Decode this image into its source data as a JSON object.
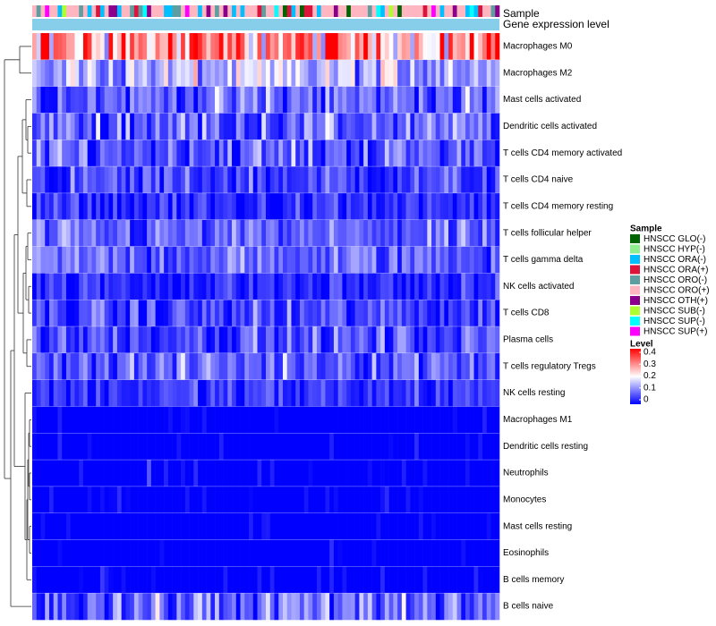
{
  "chart_data": {
    "type": "heatmap",
    "annotation_tracks": [
      "Sample",
      "Gene expression level"
    ],
    "row_labels": [
      "Macrophages M0",
      "Macrophages M2",
      "Mast cells activated",
      "Dendritic cells activated",
      "T cells CD4 memory activated",
      "T cells CD4 naive",
      "T cells CD4 memory resting",
      "T cells follicular helper",
      "T cells gamma delta",
      "NK cells activated",
      "T cells CD8",
      "Plasma cells",
      "T cells regulatory  Tregs",
      "NK cells resting",
      "Macrophages M1",
      "Dendritic cells resting",
      "Neutrophils",
      "Monocytes",
      "Mast cells resting",
      "Eosinophils",
      "B cells memory",
      "B cells naive"
    ],
    "row_mean_levels": [
      0.28,
      0.14,
      0.08,
      0.08,
      0.07,
      0.05,
      0.03,
      0.07,
      0.08,
      0.03,
      0.05,
      0.06,
      0.08,
      0.04,
      0.01,
      0.01,
      0.01,
      0.01,
      0.01,
      0.01,
      0.01,
      0.08
    ],
    "row_spread": [
      0.1,
      0.07,
      0.06,
      0.06,
      0.06,
      0.05,
      0.04,
      0.05,
      0.05,
      0.04,
      0.05,
      0.05,
      0.05,
      0.04,
      0.02,
      0.02,
      0.03,
      0.02,
      0.02,
      0.02,
      0.02,
      0.07
    ],
    "n_samples": 110,
    "color_scale": {
      "title": "Level",
      "ticks": [
        "0.4",
        "0.3",
        "0.2",
        "0.1",
        "0"
      ],
      "range": [
        0,
        0.4
      ],
      "colors": [
        "#0000ff",
        "#ffffff",
        "#ff0000"
      ]
    },
    "sample_legend": {
      "title": "Sample",
      "entries": [
        {
          "label": "HNSCC GLO(-)",
          "color": "#006400"
        },
        {
          "label": "HNSCC HYP(-)",
          "color": "#90ee90"
        },
        {
          "label": "HNSCC ORA(-)",
          "color": "#00bfff"
        },
        {
          "label": "HNSCC ORA(+)",
          "color": "#dc143c"
        },
        {
          "label": "HNSCC ORO(-)",
          "color": "#5f9ea0"
        },
        {
          "label": "HNSCC ORO(+)",
          "color": "#ffb6c1"
        },
        {
          "label": "HNSCC OTH(+)",
          "color": "#8b008b"
        },
        {
          "label": "HNSCC SUB(-)",
          "color": "#adff2f"
        },
        {
          "label": "HNSCC SUP(-)",
          "color": "#00ffff"
        },
        {
          "label": "HNSCC SUP(+)",
          "color": "#ff00ff"
        }
      ]
    },
    "expression_track_color": "#87ceeb"
  }
}
